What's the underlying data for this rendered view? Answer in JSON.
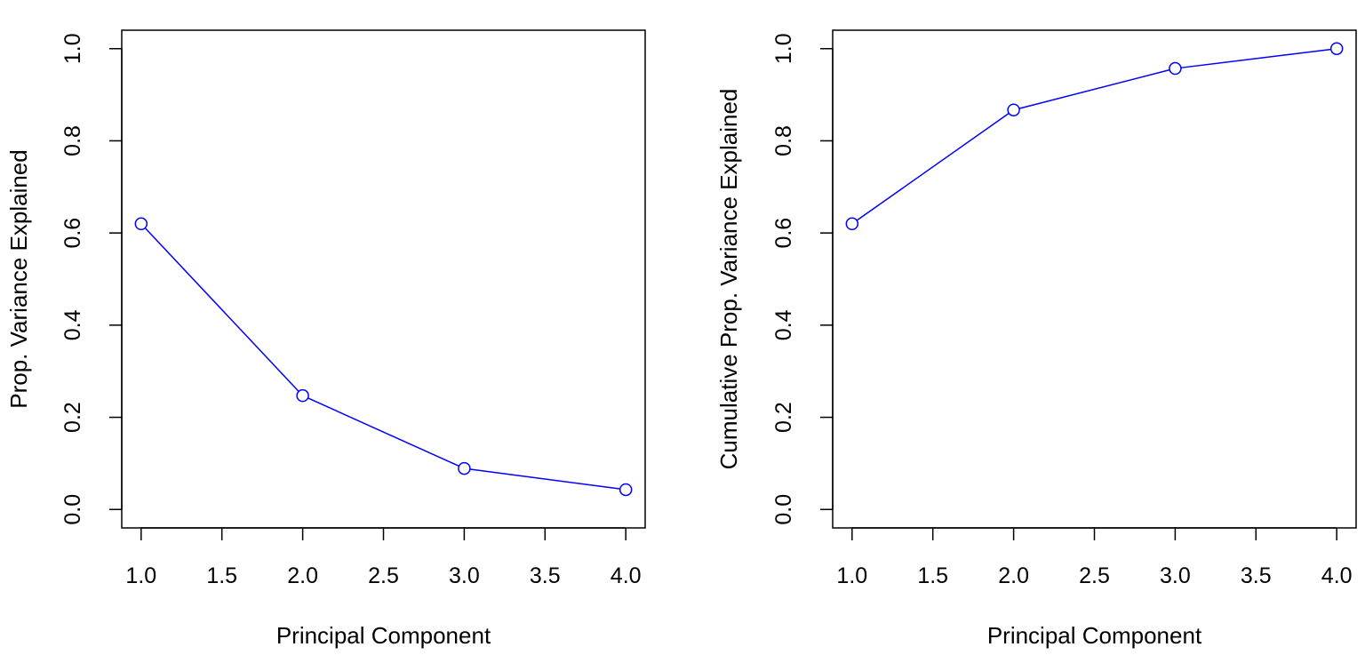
{
  "chart_data": [
    {
      "type": "line",
      "xlabel": "Principal Component",
      "ylabel": "Prop. Variance Explained",
      "x": [
        1,
        2,
        3,
        4
      ],
      "series": [
        {
          "values": [
            0.62,
            0.247,
            0.089,
            0.043
          ]
        }
      ],
      "xlim": [
        0.88,
        4.12
      ],
      "ylim": [
        -0.04,
        1.04
      ],
      "xticks": [
        "1.0",
        "1.5",
        "2.0",
        "2.5",
        "3.0",
        "3.5",
        "4.0"
      ],
      "yticks": [
        "0.0",
        "0.2",
        "0.4",
        "0.6",
        "0.8",
        "1.0"
      ],
      "color": "#0000ff",
      "marker": "open-circle",
      "grid": false
    },
    {
      "type": "line",
      "xlabel": "Principal Component",
      "ylabel": "Cumulative Prop. Variance Explained",
      "x": [
        1,
        2,
        3,
        4
      ],
      "series": [
        {
          "values": [
            0.62,
            0.867,
            0.957,
            1.0
          ]
        }
      ],
      "xlim": [
        0.88,
        4.12
      ],
      "ylim": [
        -0.04,
        1.04
      ],
      "xticks": [
        "1.0",
        "1.5",
        "2.0",
        "2.5",
        "3.0",
        "3.5",
        "4.0"
      ],
      "yticks": [
        "0.0",
        "0.2",
        "0.4",
        "0.6",
        "0.8",
        "1.0"
      ],
      "color": "#0000ff",
      "marker": "open-circle",
      "grid": false
    }
  ]
}
